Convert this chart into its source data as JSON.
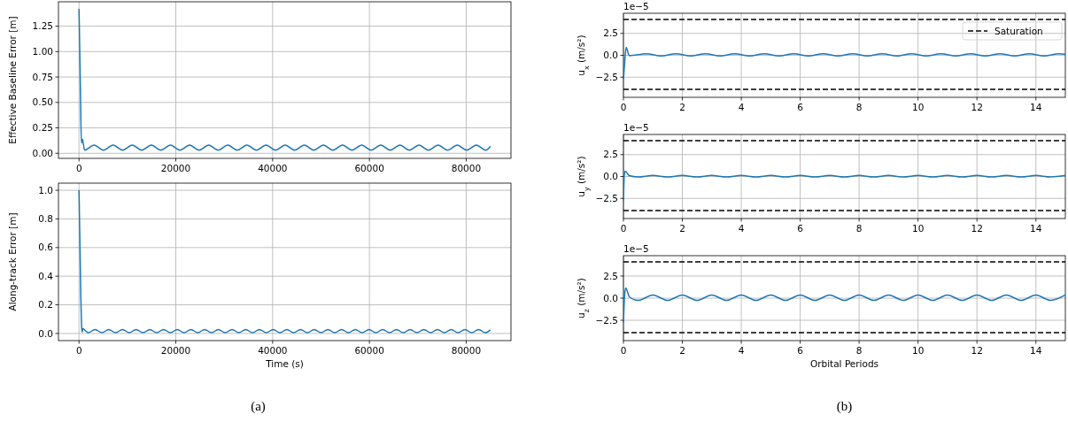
{
  "chart_data": [
    {
      "type": "line",
      "ylabel": "Effective Baseline Error [m]",
      "xlim": [
        -4250,
        89250
      ],
      "ylim": [
        -0.05,
        1.49
      ],
      "xticks": [
        0,
        20000,
        40000,
        60000,
        80000
      ],
      "yticks": [
        {
          "value": 0,
          "label": "0.00"
        },
        {
          "value": 0.25,
          "label": "0.25"
        },
        {
          "value": 0.5,
          "label": "0.50"
        },
        {
          "value": 0.75,
          "label": "0.75"
        },
        {
          "value": 1,
          "label": "1.00"
        },
        {
          "value": 1.25,
          "label": "1.25"
        }
      ],
      "grid": true,
      "marker": "none",
      "line_style": "solid",
      "series": [
        {
          "color": "#1f77b4",
          "x": [
            0,
            300,
            500,
            700,
            1150,
            3100,
            5050,
            7050,
            9000,
            11000,
            12950,
            14950,
            16900,
            18900,
            20850,
            22850,
            24800,
            26800,
            28750,
            30750,
            32700,
            34700,
            36650,
            38650,
            40600,
            42600,
            44550,
            46550,
            48500,
            50500,
            52450,
            54450,
            56400,
            58400,
            60350,
            62350,
            64300,
            66300,
            68250,
            70250,
            72200,
            74200,
            76150,
            78150,
            80100,
            82100,
            84050,
            85000
          ],
          "values": [
            1.42,
            0.6,
            0.1,
            0.14,
            0.03,
            0.08,
            0.03,
            0.08,
            0.03,
            0.08,
            0.03,
            0.08,
            0.03,
            0.08,
            0.03,
            0.08,
            0.03,
            0.08,
            0.03,
            0.08,
            0.03,
            0.08,
            0.03,
            0.08,
            0.03,
            0.08,
            0.03,
            0.08,
            0.03,
            0.08,
            0.03,
            0.08,
            0.03,
            0.08,
            0.03,
            0.08,
            0.03,
            0.08,
            0.03,
            0.08,
            0.03,
            0.08,
            0.03,
            0.08,
            0.03,
            0.08,
            0.03,
            0.07
          ]
        }
      ]
    },
    {
      "type": "line",
      "xlabel": "Time (s)",
      "ylabel": "Along-track Error [m]",
      "annotations": [
        "(a)"
      ],
      "xlim": [
        -4250,
        89250
      ],
      "ylim": [
        -0.05,
        1.05
      ],
      "xticks": [
        0,
        20000,
        40000,
        60000,
        80000
      ],
      "yticks": [
        {
          "value": 0,
          "label": "0.0"
        },
        {
          "value": 0.2,
          "label": "0.2"
        },
        {
          "value": 0.4,
          "label": "0.4"
        },
        {
          "value": 0.6,
          "label": "0.6"
        },
        {
          "value": 0.8,
          "label": "0.8"
        },
        {
          "value": 1,
          "label": "1.0"
        }
      ],
      "grid": true,
      "marker": "none",
      "line_style": "solid",
      "series": [
        {
          "color": "#1f77b4",
          "x": [
            0,
            350,
            550,
            650,
            800,
            1300,
            1900,
            3315,
            4730,
            6145,
            7560,
            8975,
            10390,
            11805,
            13220,
            14635,
            16050,
            17465,
            18880,
            20295,
            21710,
            23125,
            24540,
            25955,
            27370,
            28785,
            30200,
            31615,
            33030,
            34445,
            35860,
            37275,
            38690,
            40105,
            41520,
            42935,
            44350,
            45765,
            47180,
            48595,
            50010,
            51425,
            52840,
            54255,
            55670,
            57085,
            58500,
            59915,
            61330,
            62745,
            64160,
            65575,
            66990,
            68405,
            69820,
            71235,
            72650,
            74065,
            75480,
            76895,
            78310,
            79725,
            81140,
            82555,
            83970,
            85000
          ],
          "values": [
            1.0,
            0.3,
            0.04,
            0.01,
            0.035,
            0.02,
            0.005,
            0.028,
            0.005,
            0.028,
            0.005,
            0.028,
            0.005,
            0.028,
            0.005,
            0.028,
            0.005,
            0.028,
            0.005,
            0.028,
            0.005,
            0.028,
            0.005,
            0.028,
            0.005,
            0.028,
            0.005,
            0.028,
            0.005,
            0.028,
            0.005,
            0.028,
            0.005,
            0.028,
            0.005,
            0.028,
            0.005,
            0.028,
            0.005,
            0.028,
            0.005,
            0.028,
            0.005,
            0.028,
            0.005,
            0.028,
            0.005,
            0.028,
            0.005,
            0.028,
            0.005,
            0.028,
            0.005,
            0.028,
            0.005,
            0.028,
            0.005,
            0.028,
            0.005,
            0.028,
            0.005,
            0.028,
            0.005,
            0.028,
            0.005,
            0.025
          ]
        }
      ]
    },
    {
      "type": "line",
      "ylabel": "u$_{x}$ (m/s²)",
      "annotations": [
        "1e−5"
      ],
      "xlim": [
        0,
        15
      ],
      "ylim": [
        -4.8,
        4.8
      ],
      "xticks": [
        0,
        2,
        4,
        6,
        8,
        10,
        12,
        14
      ],
      "yticks": [
        {
          "value": -2.5,
          "label": "−2.5"
        },
        {
          "value": 0,
          "label": "0.0"
        },
        {
          "value": 2.5,
          "label": "2.5"
        }
      ],
      "grid": true,
      "marker": "none",
      "line_style": "solid",
      "legend": "top right",
      "ref_lines": [
        {
          "axis": "y",
          "value": 4.1,
          "label": "Saturation",
          "color": "#000000",
          "line_style": "dashed"
        },
        {
          "axis": "y",
          "value": -3.9,
          "color": "#000000",
          "line_style": "dashed"
        }
      ],
      "series": [
        {
          "color": "#1f77b4",
          "x": [
            0,
            0.05,
            0.09,
            0.2,
            0.78,
            1.28,
            1.78,
            2.28,
            2.78,
            3.28,
            3.78,
            4.28,
            4.78,
            5.28,
            5.78,
            6.28,
            6.78,
            7.28,
            7.78,
            8.28,
            8.78,
            9.28,
            9.78,
            10.28,
            10.78,
            11.28,
            11.78,
            12.28,
            12.78,
            13.28,
            13.78,
            14.28,
            14.78,
            15
          ],
          "values": [
            -2.8,
            -0.5,
            0.9,
            -0.05,
            0.18,
            -0.08,
            0.18,
            -0.08,
            0.18,
            -0.08,
            0.18,
            -0.08,
            0.18,
            -0.08,
            0.18,
            -0.08,
            0.18,
            -0.08,
            0.18,
            -0.08,
            0.18,
            -0.08,
            0.18,
            -0.08,
            0.18,
            -0.08,
            0.18,
            -0.08,
            0.18,
            -0.08,
            0.18,
            -0.08,
            0.18,
            0.12
          ]
        }
      ]
    },
    {
      "type": "line",
      "ylabel": "u$_{y}$ (m/s²)",
      "annotations": [
        "1e−5"
      ],
      "xlim": [
        0,
        15
      ],
      "ylim": [
        -4.8,
        4.8
      ],
      "xticks": [
        0,
        2,
        4,
        6,
        8,
        10,
        12,
        14
      ],
      "yticks": [
        {
          "value": -2.5,
          "label": "−2.5"
        },
        {
          "value": 0,
          "label": "0.0"
        },
        {
          "value": 2.5,
          "label": "2.5"
        }
      ],
      "grid": true,
      "marker": "none",
      "line_style": "solid",
      "ref_lines": [
        {
          "axis": "y",
          "value": 4.1,
          "color": "#000000",
          "line_style": "dashed"
        },
        {
          "axis": "y",
          "value": -3.9,
          "color": "#000000",
          "line_style": "dashed"
        }
      ],
      "series": [
        {
          "color": "#1f77b4",
          "x": [
            0,
            0.03,
            0.06,
            0.2,
            0.5,
            1,
            1.5,
            2,
            2.5,
            3,
            3.5,
            4,
            4.5,
            5,
            5.5,
            6,
            6.5,
            7,
            7.5,
            8,
            8.5,
            9,
            9.5,
            10,
            10.5,
            11,
            11.5,
            12,
            12.5,
            13,
            13.5,
            14,
            14.5,
            15
          ],
          "values": [
            -2.8,
            0.2,
            0.6,
            0.1,
            -0.05,
            0.12,
            -0.05,
            0.12,
            -0.05,
            0.12,
            -0.05,
            0.12,
            -0.05,
            0.12,
            -0.05,
            0.12,
            -0.05,
            0.12,
            -0.05,
            0.12,
            -0.05,
            0.12,
            -0.05,
            0.12,
            -0.05,
            0.12,
            -0.05,
            0.12,
            -0.05,
            0.12,
            -0.05,
            0.12,
            -0.05,
            0.12
          ]
        }
      ]
    },
    {
      "type": "line",
      "xlabel": "Orbital Periods",
      "ylabel": "u$_{z}$ (m/s²)",
      "annotations": [
        "1e−5",
        "(b)"
      ],
      "xlim": [
        0,
        15
      ],
      "ylim": [
        -4.8,
        4.8
      ],
      "xticks": [
        0,
        2,
        4,
        6,
        8,
        10,
        12,
        14
      ],
      "yticks": [
        {
          "value": -2.5,
          "label": "−2.5"
        },
        {
          "value": 0,
          "label": "0.0"
        },
        {
          "value": 2.5,
          "label": "2.5"
        }
      ],
      "grid": true,
      "marker": "none",
      "line_style": "solid",
      "ref_lines": [
        {
          "axis": "y",
          "value": 4.1,
          "color": "#000000",
          "line_style": "dashed"
        },
        {
          "axis": "y",
          "value": -3.9,
          "color": "#000000",
          "line_style": "dashed"
        }
      ],
      "series": [
        {
          "color": "#1f77b4",
          "x": [
            0,
            0.04,
            0.08,
            0.2,
            0.5,
            1,
            1.5,
            2,
            2.5,
            3,
            3.5,
            4,
            4.5,
            5,
            5.5,
            6,
            6.5,
            7,
            7.5,
            8,
            8.5,
            9,
            9.5,
            10,
            10.5,
            11,
            11.5,
            12,
            12.5,
            13,
            13.5,
            14,
            14.5,
            15
          ],
          "values": [
            -2.8,
            0.3,
            1.15,
            0.15,
            -0.25,
            0.35,
            -0.25,
            0.35,
            -0.25,
            0.35,
            -0.25,
            0.35,
            -0.25,
            0.35,
            -0.25,
            0.35,
            -0.25,
            0.35,
            -0.25,
            0.35,
            -0.25,
            0.35,
            -0.25,
            0.35,
            -0.25,
            0.35,
            -0.25,
            0.35,
            -0.25,
            0.35,
            -0.25,
            0.35,
            -0.25,
            0.35
          ]
        }
      ]
    }
  ]
}
